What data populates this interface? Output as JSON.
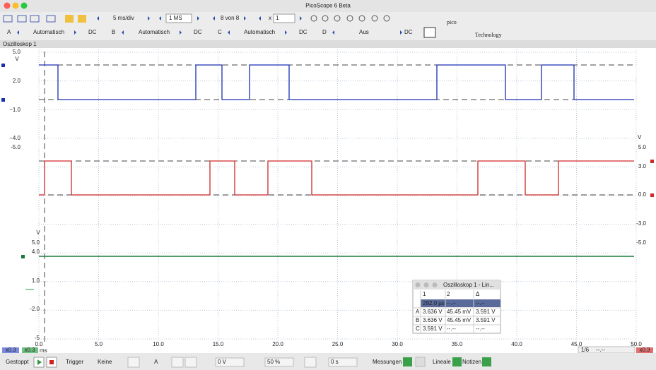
{
  "window": {
    "title": "PicoScope 6 Beta"
  },
  "toolbar": {
    "timebase": "5 ms/div",
    "samples": "1 MS",
    "buffer": "8 von 8",
    "zoom_label": "x",
    "zoom": "1"
  },
  "channels": [
    {
      "name": "A",
      "range": "Automatisch",
      "coupling": "DC"
    },
    {
      "name": "B",
      "range": "Automatisch",
      "coupling": "DC"
    },
    {
      "name": "C",
      "range": "Automatisch",
      "coupling": "DC"
    },
    {
      "name": "D",
      "range": "Aus",
      "coupling": "DC"
    }
  ],
  "logo": {
    "brand": "pico",
    "tagline": "Technology"
  },
  "tab": "Oszilloskop 1",
  "axis_a": {
    "unit": "V",
    "ticks": [
      "5.0",
      "2.0",
      "−1.0",
      "−4.0",
      "-5.0"
    ]
  },
  "axis_b": {
    "unit": "V",
    "ticks": [
      "5.0",
      "3.0",
      "0.0",
      "-3.0",
      "-5.0"
    ]
  },
  "axis_c": {
    "unit": "V",
    "ticks": [
      "5.0",
      "4.0",
      "1.0",
      "-2.0",
      "-5"
    ]
  },
  "x_axis": {
    "ticks": [
      "0.0",
      "5.0",
      "10.0",
      "15.0",
      "20.0",
      "25.0",
      "30.0",
      "35.0",
      "40.0",
      "45.0",
      "50.0"
    ],
    "unit": "ms"
  },
  "scale_badges": {
    "a": "x0.3",
    "c": "x0.3",
    "b": "x0.3",
    "page": "1/6",
    "ruler": "--.--"
  },
  "popup": {
    "title": "Oszilloskop 1 - Lin...",
    "header": [
      "1",
      "2",
      "Δ"
    ],
    "time_row": [
      "292.0 µs",
      "--.--",
      "--.--"
    ],
    "rows": [
      {
        "label": "A",
        "cells": [
          "3.636 V",
          "45.45 mV",
          "3.591 V"
        ]
      },
      {
        "label": "B",
        "cells": [
          "3.636 V",
          "45.45 mV",
          "3.591 V"
        ]
      },
      {
        "label": "C",
        "cells": [
          "3.591 V",
          "--.--",
          "--.--"
        ]
      }
    ]
  },
  "status": {
    "state": "Gestoppt",
    "trigger_label": "Trigger",
    "trigger_mode": "Keine",
    "source": "A",
    "threshold": "0 V",
    "pretrigger": "50 %",
    "delay": "0 s",
    "measurements": "Messungen",
    "rulers": "Lineale",
    "notes": "Notizen"
  }
}
